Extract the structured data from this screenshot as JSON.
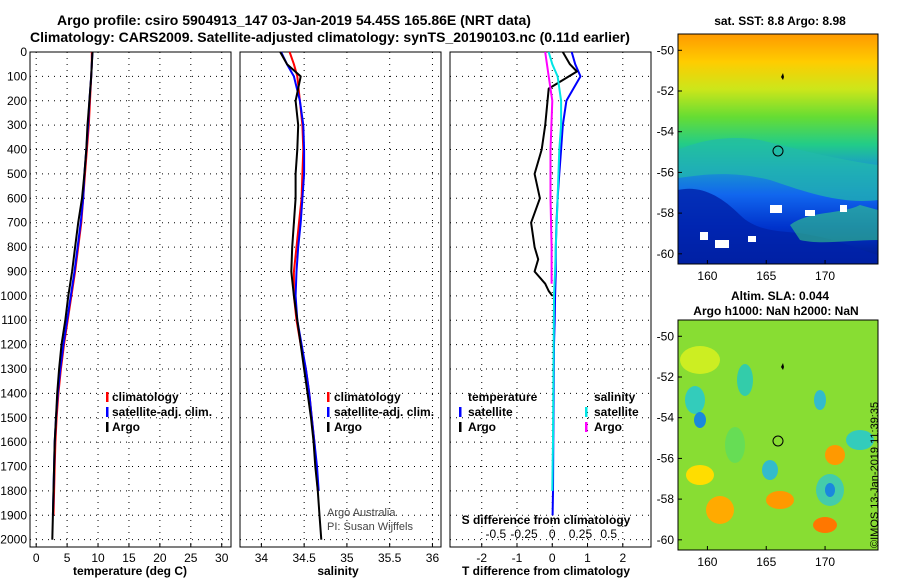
{
  "header": {
    "title_line1": "Argo profile: csiro 5904913_147 03-Jan-2019 54.45S 165.86E (NRT data)",
    "title_line2": "Climatology: CARS2009. Satellite-adjusted climatology: synTS_20190103.nc (0.11d earlier)"
  },
  "credit": "©IMOS 13-Jan-2019 11:39:35",
  "attribution": {
    "line1": "Argo Australia",
    "line2": "PI: Susan Wijffels"
  },
  "colors": {
    "climatology": "#ff0000",
    "satellite": "#0000ff",
    "argo": "#000000",
    "sal_satellite": "#00e5e5",
    "sal_argo": "#ff00ff"
  },
  "chart_data": [
    {
      "type": "line",
      "xlabel": "temperature (deg C)",
      "ylabel": "",
      "xlim": [
        -1,
        31.5
      ],
      "ylim": [
        2030,
        0
      ],
      "xticks": [
        0,
        5,
        10,
        15,
        20,
        25,
        30
      ],
      "yticks": [
        0,
        100,
        200,
        300,
        400,
        500,
        600,
        700,
        800,
        900,
        1000,
        1100,
        1200,
        1300,
        1400,
        1500,
        1600,
        1700,
        1800,
        1900,
        2000
      ],
      "grid": true,
      "legend": [
        "climatology",
        "satellite-adj. clim.",
        "Argo"
      ],
      "series": [
        {
          "name": "climatology",
          "color": "#ff0000",
          "x": [
            9.0,
            9.0,
            8.9,
            8.7,
            8.5,
            8.2,
            7.9,
            7.6,
            7.3,
            6.8,
            6.3,
            5.7,
            5.1,
            4.5,
            4.0,
            3.6,
            3.3,
            3.1,
            3.0,
            2.9,
            2.8
          ],
          "y": [
            0,
            50,
            100,
            200,
            300,
            400,
            500,
            600,
            700,
            800,
            900,
            1000,
            1100,
            1200,
            1300,
            1400,
            1500,
            1600,
            1700,
            1800,
            1900
          ]
        },
        {
          "name": "satellite-adj. clim.",
          "color": "#0000ff",
          "x": [
            9.1,
            9.0,
            8.9,
            8.6,
            8.4,
            8.1,
            7.8,
            7.6,
            7.2,
            6.7,
            6.2,
            5.6,
            5.0,
            4.4,
            3.9,
            3.5,
            3.2,
            3.0,
            2.9,
            2.8,
            2.7
          ],
          "y": [
            0,
            50,
            100,
            200,
            300,
            400,
            500,
            600,
            700,
            800,
            900,
            1000,
            1100,
            1200,
            1300,
            1400,
            1500,
            1600,
            1700,
            1800,
            1900
          ]
        },
        {
          "name": "Argo",
          "color": "#000000",
          "x": [
            9.1,
            9.0,
            8.9,
            8.6,
            8.3,
            8.1,
            7.8,
            7.4,
            6.8,
            6.3,
            5.8,
            5.2,
            4.7,
            4.1,
            3.7,
            3.4,
            3.2,
            3.0,
            2.9,
            2.8,
            2.7,
            2.6
          ],
          "y": [
            0,
            50,
            100,
            200,
            300,
            400,
            500,
            600,
            700,
            800,
            900,
            1000,
            1100,
            1200,
            1300,
            1400,
            1500,
            1600,
            1700,
            1800,
            1900,
            2000
          ]
        }
      ]
    },
    {
      "type": "line",
      "xlabel": "salinity",
      "ylabel": "",
      "xlim": [
        33.75,
        36.1
      ],
      "ylim": [
        2030,
        0
      ],
      "xticks": [
        34,
        34.5,
        35,
        35.5,
        36
      ],
      "grid": true,
      "legend": [
        "climatology",
        "satellite-adj. clim.",
        "Argo"
      ],
      "series": [
        {
          "name": "climatology",
          "color": "#ff0000",
          "x": [
            34.33,
            34.38,
            34.42,
            34.45,
            34.48,
            34.49,
            34.48,
            34.47,
            34.44,
            34.41,
            34.38,
            34.38,
            34.41,
            34.46,
            34.52,
            34.56,
            34.59,
            34.62,
            34.64,
            34.66
          ],
          "y": [
            0,
            50,
            100,
            200,
            300,
            400,
            500,
            600,
            700,
            800,
            900,
            1000,
            1100,
            1200,
            1300,
            1400,
            1500,
            1600,
            1700,
            1800
          ]
        },
        {
          "name": "satellite-adj. clim.",
          "color": "#0000ff",
          "x": [
            34.23,
            34.3,
            34.38,
            34.45,
            34.49,
            34.5,
            34.5,
            34.48,
            34.46,
            34.43,
            34.41,
            34.4,
            34.42,
            34.47,
            34.52,
            34.56,
            34.59,
            34.62,
            34.65,
            34.67
          ],
          "y": [
            0,
            50,
            100,
            200,
            300,
            400,
            500,
            600,
            700,
            800,
            900,
            1000,
            1100,
            1200,
            1300,
            1400,
            1500,
            1600,
            1700,
            1800
          ]
        },
        {
          "name": "Argo",
          "color": "#000000",
          "x": [
            34.22,
            34.3,
            34.46,
            34.4,
            34.43,
            34.42,
            34.4,
            34.4,
            34.38,
            34.36,
            34.35,
            34.38,
            34.42,
            34.46,
            34.5,
            34.54,
            34.58,
            34.61,
            34.63,
            34.66,
            34.68,
            34.7
          ],
          "y": [
            0,
            50,
            100,
            200,
            300,
            400,
            500,
            600,
            700,
            800,
            900,
            1000,
            1100,
            1200,
            1300,
            1400,
            1500,
            1600,
            1700,
            1800,
            1900,
            2000
          ]
        }
      ]
    },
    {
      "type": "line",
      "xlabel": "T difference from climatology",
      "secondary_xlabel": "S difference from climatology",
      "xlim": [
        -2.9,
        2.8
      ],
      "ylim": [
        2030,
        0
      ],
      "xticks": [
        -2,
        -1,
        0,
        1,
        2
      ],
      "secondary_xticks": [
        "-0.5",
        "-0.25",
        "0",
        "0.25",
        "0.5"
      ],
      "grid": true,
      "legend": [
        "temperature",
        "satellite",
        "Argo",
        "salinity",
        "satellite",
        "Argo"
      ],
      "series": [
        {
          "name": "satellite",
          "color": "#0000ff",
          "x": [
            0.55,
            0.65,
            0.8,
            0.6,
            0.4,
            0.3,
            0.25,
            0.2,
            0.15,
            0.12,
            0.1,
            0.1,
            0.08,
            0.07,
            0.05,
            0.04,
            0.03,
            0.02,
            0.01
          ],
          "y": [
            0,
            50,
            100,
            150,
            200,
            300,
            400,
            500,
            600,
            700,
            800,
            900,
            1000,
            1100,
            1200,
            1400,
            1600,
            1800,
            1900
          ]
        },
        {
          "name": "Argo",
          "color": "#000000",
          "x": [
            0.3,
            0.5,
            0.7,
            -0.1,
            -0.2,
            -0.3,
            -0.5,
            -0.35,
            -0.6,
            -0.5,
            -0.4,
            -0.5,
            -0.2,
            -0.1,
            0.0
          ],
          "y": [
            0,
            50,
            80,
            150,
            300,
            400,
            500,
            600,
            700,
            800,
            850,
            900,
            950,
            980,
            1000
          ]
        },
        {
          "name": "satellite",
          "color": "#00e5e5",
          "x": [
            -0.1,
            0.0,
            0.15,
            0.25,
            0.25,
            0.2,
            0.15,
            0.1,
            0.08,
            0.05,
            0.04,
            0.03,
            0.02,
            0.01,
            0.0
          ],
          "y": [
            0,
            50,
            100,
            200,
            300,
            400,
            600,
            800,
            900,
            1000,
            1200,
            1400,
            1600,
            1700,
            1800
          ]
        },
        {
          "name": "Argo",
          "color": "#ff00ff",
          "x": [
            -0.2,
            -0.1,
            0.0,
            -0.05,
            -0.05,
            -0.02,
            -0.02
          ],
          "y": [
            0,
            100,
            200,
            400,
            600,
            800,
            950
          ]
        }
      ]
    },
    {
      "type": "heatmap",
      "title": "sat. SST: 8.8 Argo: 8.98",
      "xticks": [
        160,
        165,
        170
      ],
      "yticks": [
        -50,
        -52,
        -54,
        -56,
        -58,
        -60
      ],
      "xlim": [
        157.5,
        174.5
      ],
      "ylim": [
        -60.5,
        -49.2
      ],
      "marker": {
        "lon": 165.86,
        "lat": -54.45
      }
    },
    {
      "type": "heatmap",
      "title": "Altim. SLA: 0.044",
      "subtitle": "Argo h1000: NaN h2000: NaN",
      "xticks": [
        160,
        165,
        170
      ],
      "yticks": [
        -50,
        -52,
        -54,
        -56,
        -58,
        -60
      ],
      "xlim": [
        157.5,
        174.5
      ],
      "ylim": [
        -60.5,
        -49.2
      ],
      "marker": {
        "lon": 165.86,
        "lat": -54.45
      }
    }
  ]
}
